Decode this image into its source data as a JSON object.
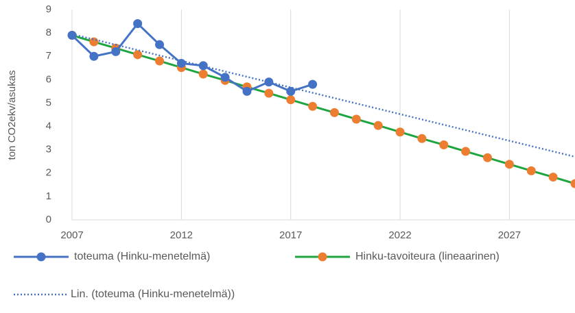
{
  "chart_data": {
    "type": "line",
    "y_label": "ton CO2ekv/asukas",
    "xlim": [
      2007,
      2030
    ],
    "xticks": [
      2007,
      2012,
      2017,
      2022,
      2027
    ],
    "ylim": [
      0,
      9
    ],
    "yticks": [
      0,
      1,
      2,
      3,
      4,
      5,
      6,
      7,
      8,
      9
    ],
    "grid": "x",
    "legend": "bottom",
    "series": [
      {
        "name": "toteuma (Hinku-menetelmä)",
        "color": "#4472c4",
        "style": "solid",
        "markers": true,
        "x": [
          2007,
          2008,
          2009,
          2010,
          2011,
          2012,
          2013,
          2014,
          2015,
          2016,
          2017,
          2018
        ],
        "values": [
          7.9,
          7.0,
          7.2,
          8.4,
          7.5,
          6.7,
          6.6,
          6.1,
          5.5,
          5.9,
          5.5,
          5.8
        ]
      },
      {
        "name": "Hinku-tavoiteura (lineaarinen)",
        "color": "#ed7d31",
        "line_color": "#1fa540",
        "style": "solid",
        "markers": true,
        "x": [
          2007,
          2008,
          2009,
          2010,
          2011,
          2012,
          2013,
          2014,
          2015,
          2016,
          2017,
          2018,
          2019,
          2020,
          2021,
          2022,
          2023,
          2024,
          2025,
          2026,
          2027,
          2028,
          2029,
          2030
        ],
        "values": [
          7.9,
          7.62,
          7.35,
          7.07,
          6.8,
          6.52,
          6.24,
          5.97,
          5.69,
          5.42,
          5.14,
          4.86,
          4.59,
          4.31,
          4.04,
          3.76,
          3.48,
          3.21,
          2.93,
          2.66,
          2.38,
          2.1,
          1.83,
          1.55
        ]
      },
      {
        "name": "Lin. (toteuma (Hinku-menetelmä))",
        "color": "#4472c4",
        "style": "dotted",
        "markers": false,
        "x": [
          2007,
          2030
        ],
        "values": [
          7.95,
          2.7
        ]
      }
    ]
  }
}
